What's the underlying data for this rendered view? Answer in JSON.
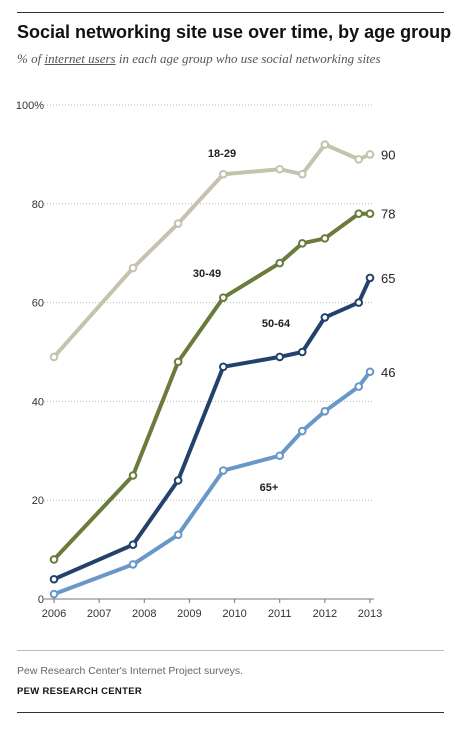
{
  "header": {
    "title": "Social networking site use over time, by age group",
    "subtitle_prefix": "% of ",
    "subtitle_link": "internet users",
    "subtitle_suffix": " in each age group who use social networking sites"
  },
  "footer": {
    "source": "Pew Research Center's Internet Project surveys.",
    "brand": "PEW RESEARCH CENTER"
  },
  "chart_data": {
    "type": "line",
    "title": "Social networking site use over time, by age group",
    "xlabel": "",
    "ylabel": "",
    "xlim": [
      2006,
      2013
    ],
    "ylim": [
      0,
      100
    ],
    "x_ticks": [
      "2006",
      "2007",
      "2008",
      "2009",
      "2010",
      "2011",
      "2012",
      "2013"
    ],
    "y_ticks": [
      "0",
      "20",
      "40",
      "60",
      "80",
      "100%"
    ],
    "grid": "horizontal-dotted",
    "series": [
      {
        "name": "18-29",
        "color": "#c5c2ae",
        "end_value_label": "90",
        "points": [
          [
            2006,
            49
          ],
          [
            2007.75,
            67
          ],
          [
            2008.75,
            76
          ],
          [
            2009.75,
            86
          ],
          [
            2011,
            87
          ],
          [
            2011.5,
            86
          ],
          [
            2012,
            92
          ],
          [
            2012.75,
            89
          ],
          [
            2013,
            90
          ]
        ]
      },
      {
        "name": "30-49",
        "color": "#6a7b3c",
        "end_value_label": "78",
        "points": [
          [
            2006,
            8
          ],
          [
            2007.75,
            25
          ],
          [
            2008.75,
            48
          ],
          [
            2009.75,
            61
          ],
          [
            2011,
            68
          ],
          [
            2011.5,
            72
          ],
          [
            2012,
            73
          ],
          [
            2012.75,
            78
          ],
          [
            2013,
            78
          ]
        ]
      },
      {
        "name": "50-64",
        "color": "#23426b",
        "end_value_label": "65",
        "points": [
          [
            2006,
            4
          ],
          [
            2007.75,
            11
          ],
          [
            2008.75,
            24
          ],
          [
            2009.75,
            47
          ],
          [
            2011,
            49
          ],
          [
            2011.5,
            50
          ],
          [
            2012,
            57
          ],
          [
            2012.75,
            60
          ],
          [
            2013,
            65
          ]
        ]
      },
      {
        "name": "65+",
        "color": "#6897c8",
        "end_value_label": "46",
        "points": [
          [
            2006,
            1
          ],
          [
            2007.75,
            7
          ],
          [
            2008.75,
            13
          ],
          [
            2009.75,
            26
          ],
          [
            2011,
            29
          ],
          [
            2011.5,
            34
          ],
          [
            2012,
            38
          ],
          [
            2012.75,
            43
          ],
          [
            2013,
            46
          ]
        ]
      }
    ]
  }
}
